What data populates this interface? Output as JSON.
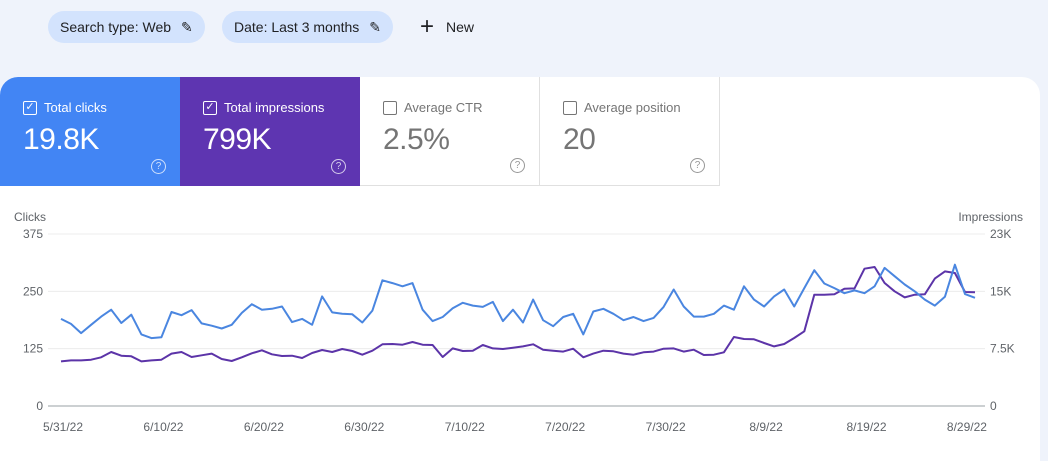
{
  "filters": [
    {
      "label": "Search type: Web",
      "icon": "pencil-icon"
    },
    {
      "label": "Date: Last 3 months",
      "icon": "pencil-icon"
    }
  ],
  "new_button": {
    "label": "New",
    "icon": "plus-icon"
  },
  "metrics": [
    {
      "label": "Total clicks",
      "value": "19.8K",
      "checked": true,
      "color": "#4285f4"
    },
    {
      "label": "Total impressions",
      "value": "799K",
      "checked": true,
      "color": "#5e35b1"
    },
    {
      "label": "Average CTR",
      "value": "2.5%",
      "checked": false
    },
    {
      "label": "Average position",
      "value": "20",
      "checked": false
    }
  ],
  "chart_data": {
    "type": "line",
    "left_axis": {
      "label": "Clicks",
      "ticks": [
        "375",
        "250",
        "125",
        "0"
      ],
      "range": [
        0,
        375
      ]
    },
    "right_axis": {
      "label": "Impressions",
      "ticks": [
        "23K",
        "15K",
        "7.5K",
        "0"
      ],
      "range": [
        0,
        22500
      ]
    },
    "x_tick_labels": [
      "5/31/22",
      "6/10/22",
      "6/20/22",
      "6/30/22",
      "7/10/22",
      "7/20/22",
      "7/30/22",
      "8/9/22",
      "8/19/22",
      "8/29/22"
    ],
    "x_range": [
      "5/31/22",
      "8/30/22"
    ],
    "grid": true,
    "series": [
      {
        "axis": "left",
        "color": "#4a86e0",
        "values": [
          190,
          179,
          159,
          177,
          195,
          210,
          181,
          199,
          156,
          148,
          150,
          205,
          198,
          209,
          180,
          175,
          169,
          177,
          203,
          222,
          210,
          212,
          217,
          183,
          190,
          177,
          239,
          204,
          201,
          200,
          182,
          208,
          274,
          268,
          261,
          268,
          210,
          185,
          194,
          213,
          225,
          219,
          216,
          227,
          185,
          210,
          182,
          232,
          187,
          174,
          194,
          201,
          156,
          206,
          212,
          201,
          187,
          194,
          185,
          192,
          216,
          254,
          217,
          195,
          195,
          201,
          219,
          210,
          261,
          232,
          217,
          239,
          254,
          217,
          257,
          296,
          267,
          257,
          246,
          252,
          246,
          261,
          301,
          283,
          265,
          250,
          232,
          219,
          238,
          308,
          244,
          236
        ]
      },
      {
        "axis": "right",
        "color": "#5c34a8",
        "values": [
          5840,
          5970,
          5970,
          6060,
          6370,
          7060,
          6580,
          6500,
          5840,
          5970,
          6060,
          6850,
          7060,
          6410,
          6630,
          6850,
          6150,
          5890,
          6370,
          6890,
          7280,
          6760,
          6540,
          6580,
          6280,
          6930,
          7320,
          7060,
          7460,
          7190,
          6710,
          7240,
          8070,
          8110,
          8020,
          8370,
          8020,
          7980,
          6410,
          7540,
          7190,
          7240,
          7980,
          7540,
          7460,
          7630,
          7800,
          8070,
          7370,
          7240,
          7110,
          7500,
          6370,
          6850,
          7240,
          7150,
          6850,
          6710,
          7020,
          7110,
          7500,
          7540,
          7110,
          7370,
          6670,
          6710,
          7020,
          9030,
          8760,
          8720,
          8240,
          7800,
          8110,
          8890,
          9770,
          14560,
          14560,
          14610,
          15350,
          15390,
          17960,
          18180,
          16090,
          15000,
          14210,
          14560,
          14610,
          16660,
          17610,
          17400,
          14910,
          14870
        ]
      }
    ]
  }
}
